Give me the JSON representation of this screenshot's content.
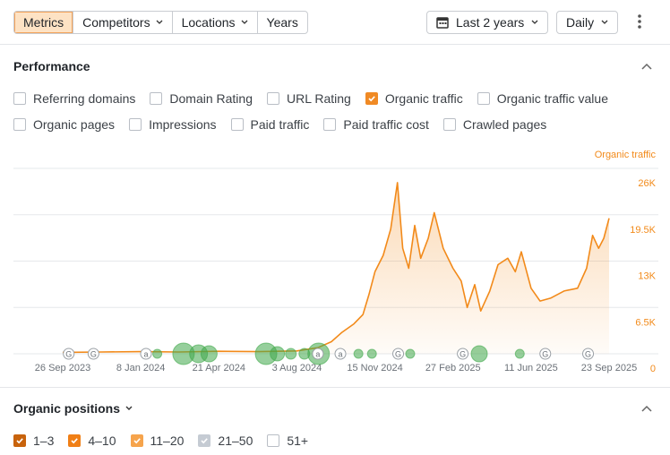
{
  "toolbar": {
    "tabs": [
      {
        "label": "Metrics",
        "dropdown": false
      },
      {
        "label": "Competitors",
        "dropdown": true
      },
      {
        "label": "Locations",
        "dropdown": true
      },
      {
        "label": "Years",
        "dropdown": false
      }
    ],
    "active_tab": "Metrics",
    "date_range": "Last 2 years",
    "granularity": "Daily"
  },
  "performance": {
    "title": "Performance",
    "metrics": [
      [
        {
          "label": "Referring domains",
          "checked": false
        },
        {
          "label": "Domain Rating",
          "checked": false
        },
        {
          "label": "URL Rating",
          "checked": false
        },
        {
          "label": "Organic traffic",
          "checked": true
        },
        {
          "label": "Organic traffic value",
          "checked": false
        }
      ],
      [
        {
          "label": "Organic pages",
          "checked": false
        },
        {
          "label": "Impressions",
          "checked": false
        },
        {
          "label": "Paid traffic",
          "checked": false
        },
        {
          "label": "Paid traffic cost",
          "checked": false
        },
        {
          "label": "Crawled pages",
          "checked": false
        }
      ]
    ]
  },
  "chart_data": {
    "type": "line",
    "area": true,
    "grid": true,
    "y_axis_side": "right",
    "xlim": [
      "2023-09-26",
      "2025-09-23"
    ],
    "xticks": [
      {
        "value": "2023-09-26",
        "label": "26 Sep 2023"
      },
      {
        "value": "2024-01-08",
        "label": "8 Jan 2024"
      },
      {
        "value": "2024-04-21",
        "label": "21 Apr 2024"
      },
      {
        "value": "2024-08-03",
        "label": "3 Aug 2024"
      },
      {
        "value": "2024-11-15",
        "label": "15 Nov 2024"
      },
      {
        "value": "2025-02-27",
        "label": "27 Feb 2025"
      },
      {
        "value": "2025-06-11",
        "label": "11 Jun 2025"
      },
      {
        "value": "2025-09-23",
        "label": "23 Sep 2025"
      }
    ],
    "ylim": [
      0,
      26000
    ],
    "yticks": [
      0,
      {
        "value": 6500,
        "label": "6.5K"
      },
      {
        "value": 13000,
        "label": "13K"
      },
      {
        "value": 19500,
        "label": "19.5K"
      },
      {
        "value": 26000,
        "label": "26K"
      }
    ],
    "x": [
      "2023-09-26",
      "2023-11-16",
      "2024-01-08",
      "2024-02-28",
      "2024-04-21",
      "2024-06-14",
      "2024-08-03",
      "2024-08-31",
      "2024-09-18",
      "2024-10-02",
      "2024-10-18",
      "2024-10-30",
      "2024-11-07",
      "2024-11-15",
      "2024-11-26",
      "2024-12-06",
      "2024-12-15",
      "2024-12-22",
      "2024-12-30",
      "2025-01-07",
      "2025-01-15",
      "2025-01-25",
      "2025-02-02",
      "2025-02-14",
      "2025-02-27",
      "2025-03-10",
      "2025-03-18",
      "2025-03-28",
      "2025-04-05",
      "2025-04-17",
      "2025-04-28",
      "2025-05-11",
      "2025-05-21",
      "2025-05-29",
      "2025-06-11",
      "2025-06-23",
      "2025-07-07",
      "2025-07-25",
      "2025-08-12",
      "2025-08-24",
      "2025-09-01",
      "2025-09-09",
      "2025-09-16",
      "2025-09-23"
    ],
    "series": [
      {
        "name": "Organic traffic",
        "color": "#f28a1a",
        "values": [
          200,
          250,
          300,
          250,
          350,
          300,
          400,
          850,
          1700,
          3000,
          4200,
          5500,
          8300,
          11500,
          13800,
          17500,
          24000,
          14800,
          12000,
          18000,
          13400,
          16200,
          19800,
          14800,
          12000,
          10200,
          6500,
          9700,
          6000,
          8800,
          12500,
          13400,
          11500,
          14300,
          9200,
          7400,
          7800,
          8800,
          9200,
          12000,
          16600,
          14800,
          16200,
          19000
        ]
      }
    ],
    "events": [
      {
        "x": "2023-10-04",
        "label": "G"
      },
      {
        "x": "2023-11-06",
        "label": "G"
      },
      {
        "x": "2024-01-15",
        "label": "a"
      },
      {
        "x": "2024-08-31",
        "label": "a"
      },
      {
        "x": "2024-09-30",
        "label": "a"
      },
      {
        "x": "2024-12-16",
        "label": "G"
      },
      {
        "x": "2025-03-12",
        "label": "G"
      },
      {
        "x": "2025-06-30",
        "label": "G"
      },
      {
        "x": "2025-08-26",
        "label": "G"
      }
    ],
    "bubbles": [
      {
        "x": "2024-01-30",
        "size": 5
      },
      {
        "x": "2024-03-05",
        "size": 12
      },
      {
        "x": "2024-03-25",
        "size": 10
      },
      {
        "x": "2024-04-08",
        "size": 9
      },
      {
        "x": "2024-06-23",
        "size": 12
      },
      {
        "x": "2024-07-08",
        "size": 8
      },
      {
        "x": "2024-07-26",
        "size": 6
      },
      {
        "x": "2024-08-13",
        "size": 6
      },
      {
        "x": "2024-09-01",
        "size": 12
      },
      {
        "x": "2024-10-24",
        "size": 5
      },
      {
        "x": "2024-11-11",
        "size": 5
      },
      {
        "x": "2025-01-01",
        "size": 5
      },
      {
        "x": "2025-04-03",
        "size": 9
      },
      {
        "x": "2025-05-27",
        "size": 5
      }
    ],
    "bubble_color": "#3fa84a"
  },
  "positions": {
    "title": "Organic positions",
    "filters": [
      {
        "label": "1–3",
        "checked": true,
        "color": "#c8630c"
      },
      {
        "label": "4–10",
        "checked": true,
        "color": "#f07f16"
      },
      {
        "label": "11–20",
        "checked": true,
        "color": "#f6a44c"
      },
      {
        "label": "21–50",
        "checked": true,
        "color": "#c5cbd3"
      },
      {
        "label": "51+",
        "checked": false,
        "color": "#c9ccd1"
      }
    ]
  }
}
